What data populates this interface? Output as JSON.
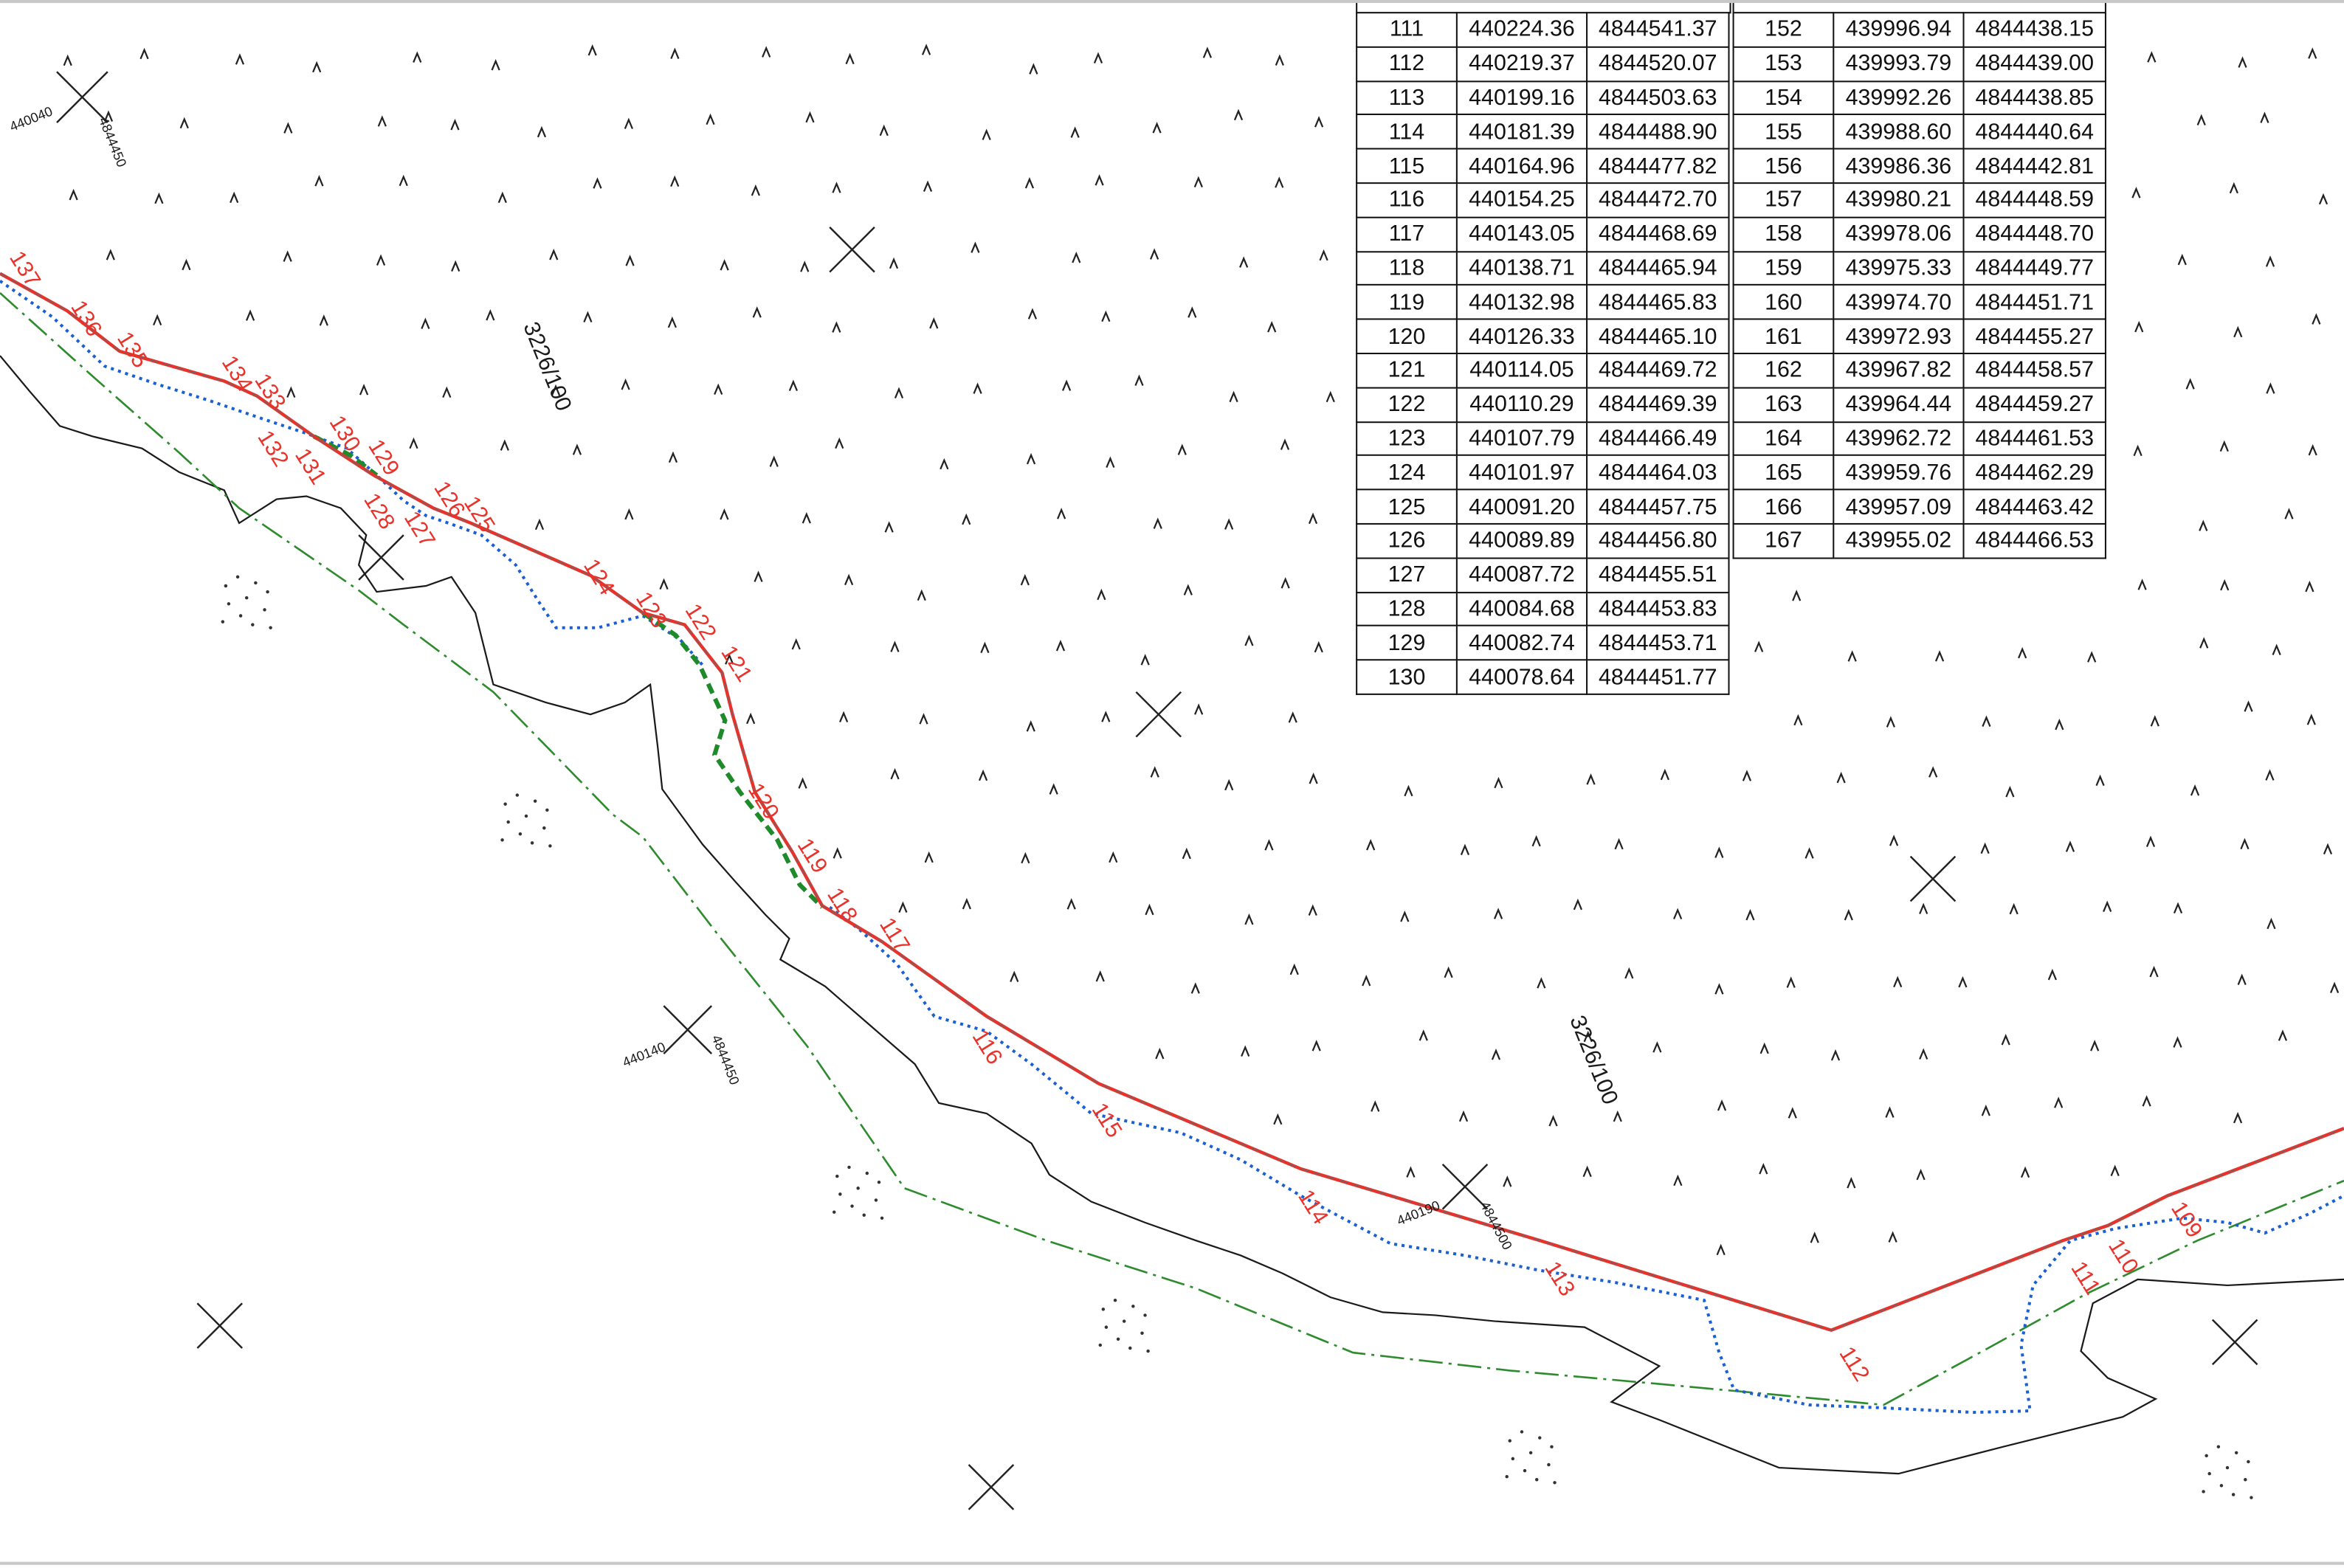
{
  "colors": {
    "boundary": "#e8322a",
    "water_edge": "#1a5fd6",
    "green_dashed": "#1f8a2a",
    "zone_line": "#2e8b2e",
    "terrain": "#1a1a1a"
  },
  "map": {
    "parcel_labels": [
      "3226/100",
      "3226/100"
    ],
    "coordinate_labels": [
      "440040",
      "4844450",
      "440140",
      "4844450",
      "440190",
      "4844500"
    ],
    "point_labels": [
      "137",
      "136",
      "135",
      "134",
      "133",
      "132",
      "131",
      "130",
      "129",
      "128",
      "127",
      "126",
      "125",
      "124",
      "123",
      "122",
      "121",
      "120",
      "119",
      "118",
      "117",
      "116",
      "115",
      "114",
      "113",
      "112",
      "111",
      "110",
      "109"
    ]
  },
  "tables": {
    "left": [
      [
        "111",
        "440224.36",
        "4844541.37"
      ],
      [
        "112",
        "440219.37",
        "4844520.07"
      ],
      [
        "113",
        "440199.16",
        "4844503.63"
      ],
      [
        "114",
        "440181.39",
        "4844488.90"
      ],
      [
        "115",
        "440164.96",
        "4844477.82"
      ],
      [
        "116",
        "440154.25",
        "4844472.70"
      ],
      [
        "117",
        "440143.05",
        "4844468.69"
      ],
      [
        "118",
        "440138.71",
        "4844465.94"
      ],
      [
        "119",
        "440132.98",
        "4844465.83"
      ],
      [
        "120",
        "440126.33",
        "4844465.10"
      ],
      [
        "121",
        "440114.05",
        "4844469.72"
      ],
      [
        "122",
        "440110.29",
        "4844469.39"
      ],
      [
        "123",
        "440107.79",
        "4844466.49"
      ],
      [
        "124",
        "440101.97",
        "4844464.03"
      ],
      [
        "125",
        "440091.20",
        "4844457.75"
      ],
      [
        "126",
        "440089.89",
        "4844456.80"
      ],
      [
        "127",
        "440087.72",
        "4844455.51"
      ],
      [
        "128",
        "440084.68",
        "4844453.83"
      ],
      [
        "129",
        "440082.74",
        "4844453.71"
      ],
      [
        "130",
        "440078.64",
        "4844451.77"
      ]
    ],
    "right": [
      [
        "152",
        "439996.94",
        "4844438.15"
      ],
      [
        "153",
        "439993.79",
        "4844439.00"
      ],
      [
        "154",
        "439992.26",
        "4844438.85"
      ],
      [
        "155",
        "439988.60",
        "4844440.64"
      ],
      [
        "156",
        "439986.36",
        "4844442.81"
      ],
      [
        "157",
        "439980.21",
        "4844448.59"
      ],
      [
        "158",
        "439978.06",
        "4844448.70"
      ],
      [
        "159",
        "439975.33",
        "4844449.77"
      ],
      [
        "160",
        "439974.70",
        "4844451.71"
      ],
      [
        "161",
        "439972.93",
        "4844455.27"
      ],
      [
        "162",
        "439967.82",
        "4844458.57"
      ],
      [
        "163",
        "439964.44",
        "4844459.27"
      ],
      [
        "164",
        "439962.72",
        "4844461.53"
      ],
      [
        "165",
        "439959.76",
        "4844462.29"
      ],
      [
        "166",
        "439957.09",
        "4844463.42"
      ],
      [
        "167",
        "439955.02",
        "4844466.53"
      ]
    ]
  }
}
